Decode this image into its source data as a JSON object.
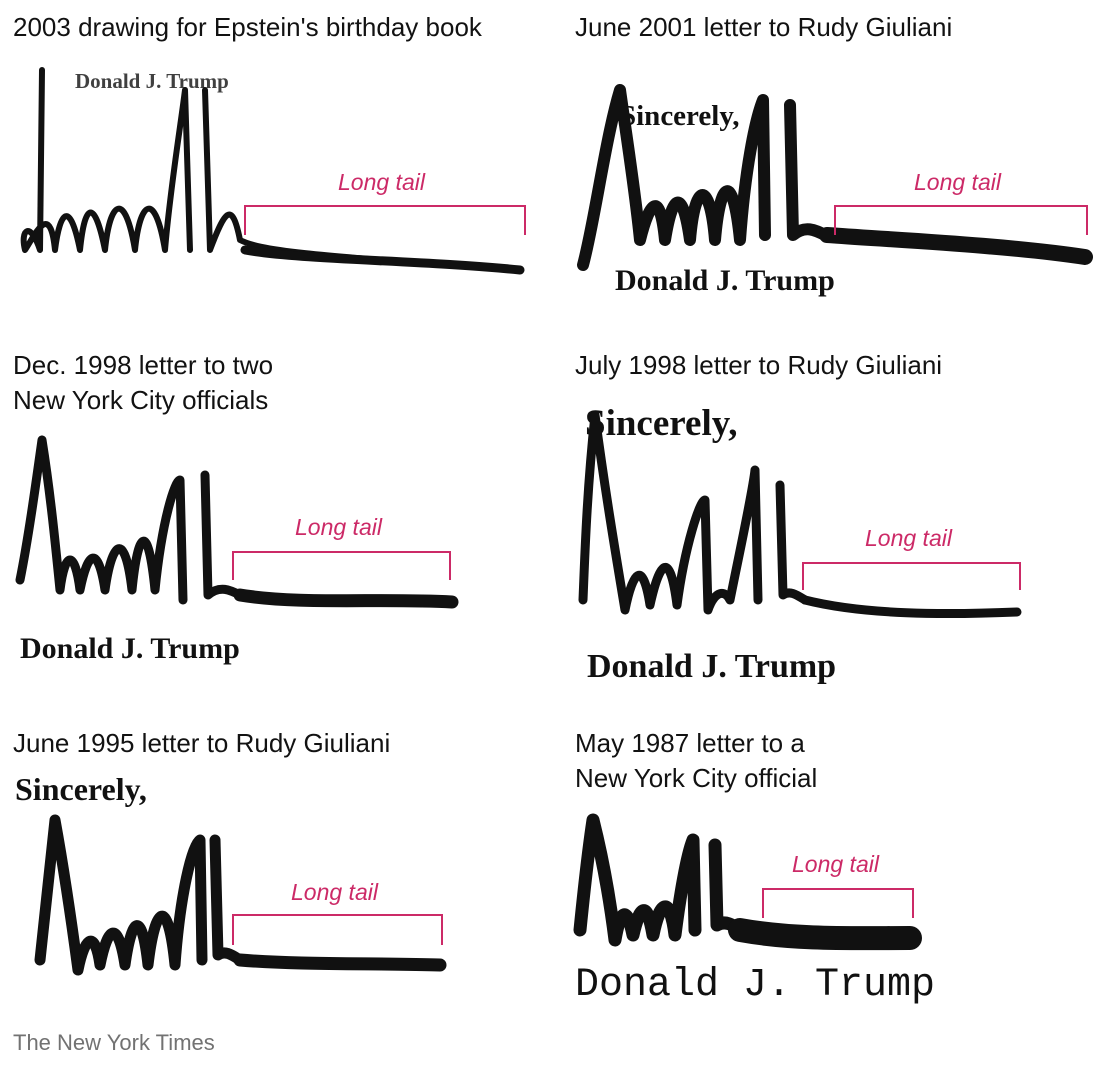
{
  "panels": [
    {
      "caption": "2003 drawing for Epstein's birthday book",
      "name_line": "Donald J. Trump",
      "closing": "",
      "tail_label": "Long tail"
    },
    {
      "caption": "June 2001 letter to Rudy Giuliani",
      "name_line": "Donald J. Trump",
      "closing": "Sincerely,",
      "tail_label": "Long tail"
    },
    {
      "caption": "Dec. 1998 letter to two\nNew York City officials",
      "name_line": "Donald J. Trump",
      "closing": "",
      "tail_label": "Long tail"
    },
    {
      "caption": "July 1998 letter to Rudy Giuliani",
      "name_line": "Donald J. Trump",
      "closing": "Sincerely,",
      "tail_label": "Long tail"
    },
    {
      "caption": "June 1995 letter to Rudy Giuliani",
      "name_line": "",
      "closing": "Sincerely,",
      "tail_label": "Long tail"
    },
    {
      "caption": "May 1987 letter to a\nNew York City official",
      "name_line": "Donald J. Trump",
      "closing": "",
      "tail_label": "Long tail"
    }
  ],
  "credit": "The New York Times"
}
